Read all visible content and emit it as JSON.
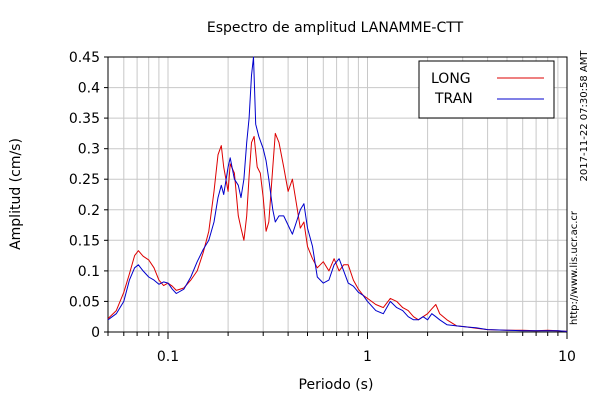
{
  "chart_data": {
    "type": "line",
    "title": "Espectro de amplitud LANAMME-CTT",
    "xlabel": "Periodo (s)",
    "ylabel": "Amplitud (cm/s)",
    "xscale": "log",
    "xlim": [
      0.05,
      10
    ],
    "ylim": [
      0,
      0.45
    ],
    "x_ticks": [
      {
        "value": 0.1,
        "label": "0.1"
      },
      {
        "value": 1,
        "label": "1"
      },
      {
        "value": 10,
        "label": "10"
      }
    ],
    "y_ticks": [
      {
        "value": 0,
        "label": "0"
      },
      {
        "value": 0.05,
        "label": "0.05"
      },
      {
        "value": 0.1,
        "label": "0.1"
      },
      {
        "value": 0.15,
        "label": "0.15"
      },
      {
        "value": 0.2,
        "label": "0.2"
      },
      {
        "value": 0.25,
        "label": "0.25"
      },
      {
        "value": 0.3,
        "label": "0.3"
      },
      {
        "value": 0.35,
        "label": "0.35"
      },
      {
        "value": 0.4,
        "label": "0.4"
      },
      {
        "value": 0.45,
        "label": "0.45"
      }
    ],
    "grid": true,
    "legend_position": "top-right",
    "timestamp": "2017-11-22 07:30:58 AMT",
    "url": "http://www.lis.ucr.ac.cr",
    "series": [
      {
        "name": "LONG",
        "color": "#dd0000",
        "points": [
          [
            0.05,
            0.022
          ],
          [
            0.055,
            0.035
          ],
          [
            0.06,
            0.065
          ],
          [
            0.064,
            0.095
          ],
          [
            0.068,
            0.125
          ],
          [
            0.071,
            0.133
          ],
          [
            0.075,
            0.124
          ],
          [
            0.08,
            0.118
          ],
          [
            0.085,
            0.105
          ],
          [
            0.09,
            0.085
          ],
          [
            0.095,
            0.076
          ],
          [
            0.1,
            0.08
          ],
          [
            0.105,
            0.075
          ],
          [
            0.11,
            0.068
          ],
          [
            0.12,
            0.072
          ],
          [
            0.13,
            0.085
          ],
          [
            0.14,
            0.1
          ],
          [
            0.15,
            0.13
          ],
          [
            0.16,
            0.165
          ],
          [
            0.17,
            0.23
          ],
          [
            0.178,
            0.29
          ],
          [
            0.185,
            0.305
          ],
          [
            0.19,
            0.27
          ],
          [
            0.2,
            0.23
          ],
          [
            0.205,
            0.275
          ],
          [
            0.215,
            0.26
          ],
          [
            0.225,
            0.19
          ],
          [
            0.232,
            0.17
          ],
          [
            0.24,
            0.15
          ],
          [
            0.248,
            0.19
          ],
          [
            0.255,
            0.255
          ],
          [
            0.262,
            0.31
          ],
          [
            0.27,
            0.32
          ],
          [
            0.28,
            0.27
          ],
          [
            0.29,
            0.26
          ],
          [
            0.3,
            0.22
          ],
          [
            0.31,
            0.165
          ],
          [
            0.32,
            0.18
          ],
          [
            0.335,
            0.27
          ],
          [
            0.345,
            0.325
          ],
          [
            0.36,
            0.31
          ],
          [
            0.38,
            0.27
          ],
          [
            0.4,
            0.23
          ],
          [
            0.42,
            0.25
          ],
          [
            0.44,
            0.21
          ],
          [
            0.46,
            0.17
          ],
          [
            0.48,
            0.18
          ],
          [
            0.5,
            0.14
          ],
          [
            0.53,
            0.12
          ],
          [
            0.56,
            0.105
          ],
          [
            0.6,
            0.115
          ],
          [
            0.64,
            0.1
          ],
          [
            0.68,
            0.12
          ],
          [
            0.72,
            0.1
          ],
          [
            0.76,
            0.11
          ],
          [
            0.8,
            0.11
          ],
          [
            0.85,
            0.085
          ],
          [
            0.9,
            0.07
          ],
          [
            0.95,
            0.06
          ],
          [
            1.0,
            0.055
          ],
          [
            1.1,
            0.045
          ],
          [
            1.2,
            0.04
          ],
          [
            1.3,
            0.055
          ],
          [
            1.4,
            0.05
          ],
          [
            1.5,
            0.04
          ],
          [
            1.6,
            0.035
          ],
          [
            1.7,
            0.025
          ],
          [
            1.8,
            0.02
          ],
          [
            1.9,
            0.025
          ],
          [
            2.0,
            0.03
          ],
          [
            2.1,
            0.038
          ],
          [
            2.2,
            0.045
          ],
          [
            2.3,
            0.03
          ],
          [
            2.5,
            0.02
          ],
          [
            2.8,
            0.01
          ],
          [
            3.2,
            0.008
          ],
          [
            3.5,
            0.006
          ],
          [
            4.0,
            0.004
          ],
          [
            5.0,
            0.003
          ],
          [
            6.0,
            0.003
          ],
          [
            7.0,
            0.002
          ],
          [
            8.0,
            0.003
          ],
          [
            9.0,
            0.002
          ],
          [
            10.0,
            0.001
          ]
        ]
      },
      {
        "name": "TRAN",
        "color": "#0000cc",
        "points": [
          [
            0.05,
            0.02
          ],
          [
            0.055,
            0.03
          ],
          [
            0.06,
            0.05
          ],
          [
            0.064,
            0.085
          ],
          [
            0.068,
            0.105
          ],
          [
            0.071,
            0.11
          ],
          [
            0.075,
            0.1
          ],
          [
            0.08,
            0.09
          ],
          [
            0.085,
            0.085
          ],
          [
            0.09,
            0.078
          ],
          [
            0.095,
            0.082
          ],
          [
            0.1,
            0.08
          ],
          [
            0.105,
            0.07
          ],
          [
            0.11,
            0.063
          ],
          [
            0.12,
            0.07
          ],
          [
            0.13,
            0.09
          ],
          [
            0.14,
            0.115
          ],
          [
            0.15,
            0.135
          ],
          [
            0.16,
            0.15
          ],
          [
            0.17,
            0.18
          ],
          [
            0.178,
            0.22
          ],
          [
            0.185,
            0.24
          ],
          [
            0.19,
            0.225
          ],
          [
            0.2,
            0.27
          ],
          [
            0.205,
            0.285
          ],
          [
            0.215,
            0.25
          ],
          [
            0.225,
            0.24
          ],
          [
            0.232,
            0.22
          ],
          [
            0.24,
            0.25
          ],
          [
            0.248,
            0.31
          ],
          [
            0.255,
            0.35
          ],
          [
            0.262,
            0.42
          ],
          [
            0.268,
            0.45
          ],
          [
            0.275,
            0.34
          ],
          [
            0.285,
            0.32
          ],
          [
            0.3,
            0.3
          ],
          [
            0.31,
            0.28
          ],
          [
            0.32,
            0.25
          ],
          [
            0.335,
            0.2
          ],
          [
            0.345,
            0.18
          ],
          [
            0.36,
            0.19
          ],
          [
            0.38,
            0.19
          ],
          [
            0.4,
            0.175
          ],
          [
            0.42,
            0.16
          ],
          [
            0.44,
            0.18
          ],
          [
            0.46,
            0.2
          ],
          [
            0.48,
            0.21
          ],
          [
            0.5,
            0.17
          ],
          [
            0.53,
            0.14
          ],
          [
            0.56,
            0.09
          ],
          [
            0.6,
            0.08
          ],
          [
            0.64,
            0.085
          ],
          [
            0.68,
            0.11
          ],
          [
            0.72,
            0.12
          ],
          [
            0.76,
            0.1
          ],
          [
            0.8,
            0.08
          ],
          [
            0.85,
            0.075
          ],
          [
            0.9,
            0.065
          ],
          [
            0.95,
            0.06
          ],
          [
            1.0,
            0.05
          ],
          [
            1.1,
            0.035
          ],
          [
            1.2,
            0.03
          ],
          [
            1.3,
            0.05
          ],
          [
            1.4,
            0.04
          ],
          [
            1.5,
            0.035
          ],
          [
            1.6,
            0.025
          ],
          [
            1.7,
            0.02
          ],
          [
            1.8,
            0.02
          ],
          [
            1.9,
            0.025
          ],
          [
            2.0,
            0.02
          ],
          [
            2.1,
            0.03
          ],
          [
            2.2,
            0.025
          ],
          [
            2.3,
            0.02
          ],
          [
            2.5,
            0.012
          ],
          [
            2.8,
            0.01
          ],
          [
            3.2,
            0.008
          ],
          [
            3.5,
            0.007
          ],
          [
            4.0,
            0.004
          ],
          [
            5.0,
            0.003
          ],
          [
            6.0,
            0.002
          ],
          [
            7.0,
            0.002
          ],
          [
            8.0,
            0.002
          ],
          [
            9.0,
            0.002
          ],
          [
            10.0,
            0.001
          ]
        ]
      }
    ]
  }
}
